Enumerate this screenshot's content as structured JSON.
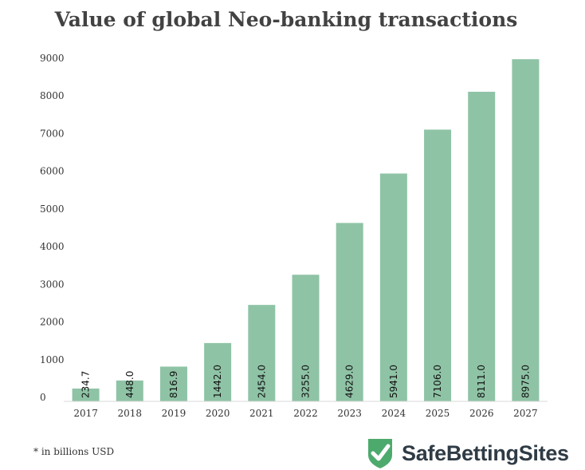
{
  "chart_data": {
    "type": "bar",
    "title": "Value of global Neo-banking transactions",
    "categories": [
      "2017",
      "2018",
      "2019",
      "2020",
      "2021",
      "2022",
      "2023",
      "2024",
      "2025",
      "2026",
      "2027"
    ],
    "values": [
      234.7,
      448.0,
      816.9,
      1442.0,
      2454.0,
      3255.0,
      4629.0,
      5941.0,
      7106.0,
      8111.0,
      8975.0
    ],
    "value_labels": [
      "234.7",
      "448.0",
      "816.9",
      "1442.0",
      "2454.0",
      "3255.0",
      "4629.0",
      "5941.0",
      "7106.0",
      "8111.0",
      "8975.0"
    ],
    "yticks": [
      "0",
      "1000",
      "2000",
      "3000",
      "4000",
      "5000",
      "6000",
      "7000",
      "8000",
      "9000"
    ],
    "ylim": [
      0,
      9000
    ],
    "xlabel": "",
    "ylabel": "",
    "grid": false,
    "bar_color": "#8fc3a6"
  },
  "footnote": "* in billions USD",
  "brand": {
    "name": "SafeBettingSites",
    "icon": "shield-check-icon",
    "icon_color": "#4daa6d"
  }
}
